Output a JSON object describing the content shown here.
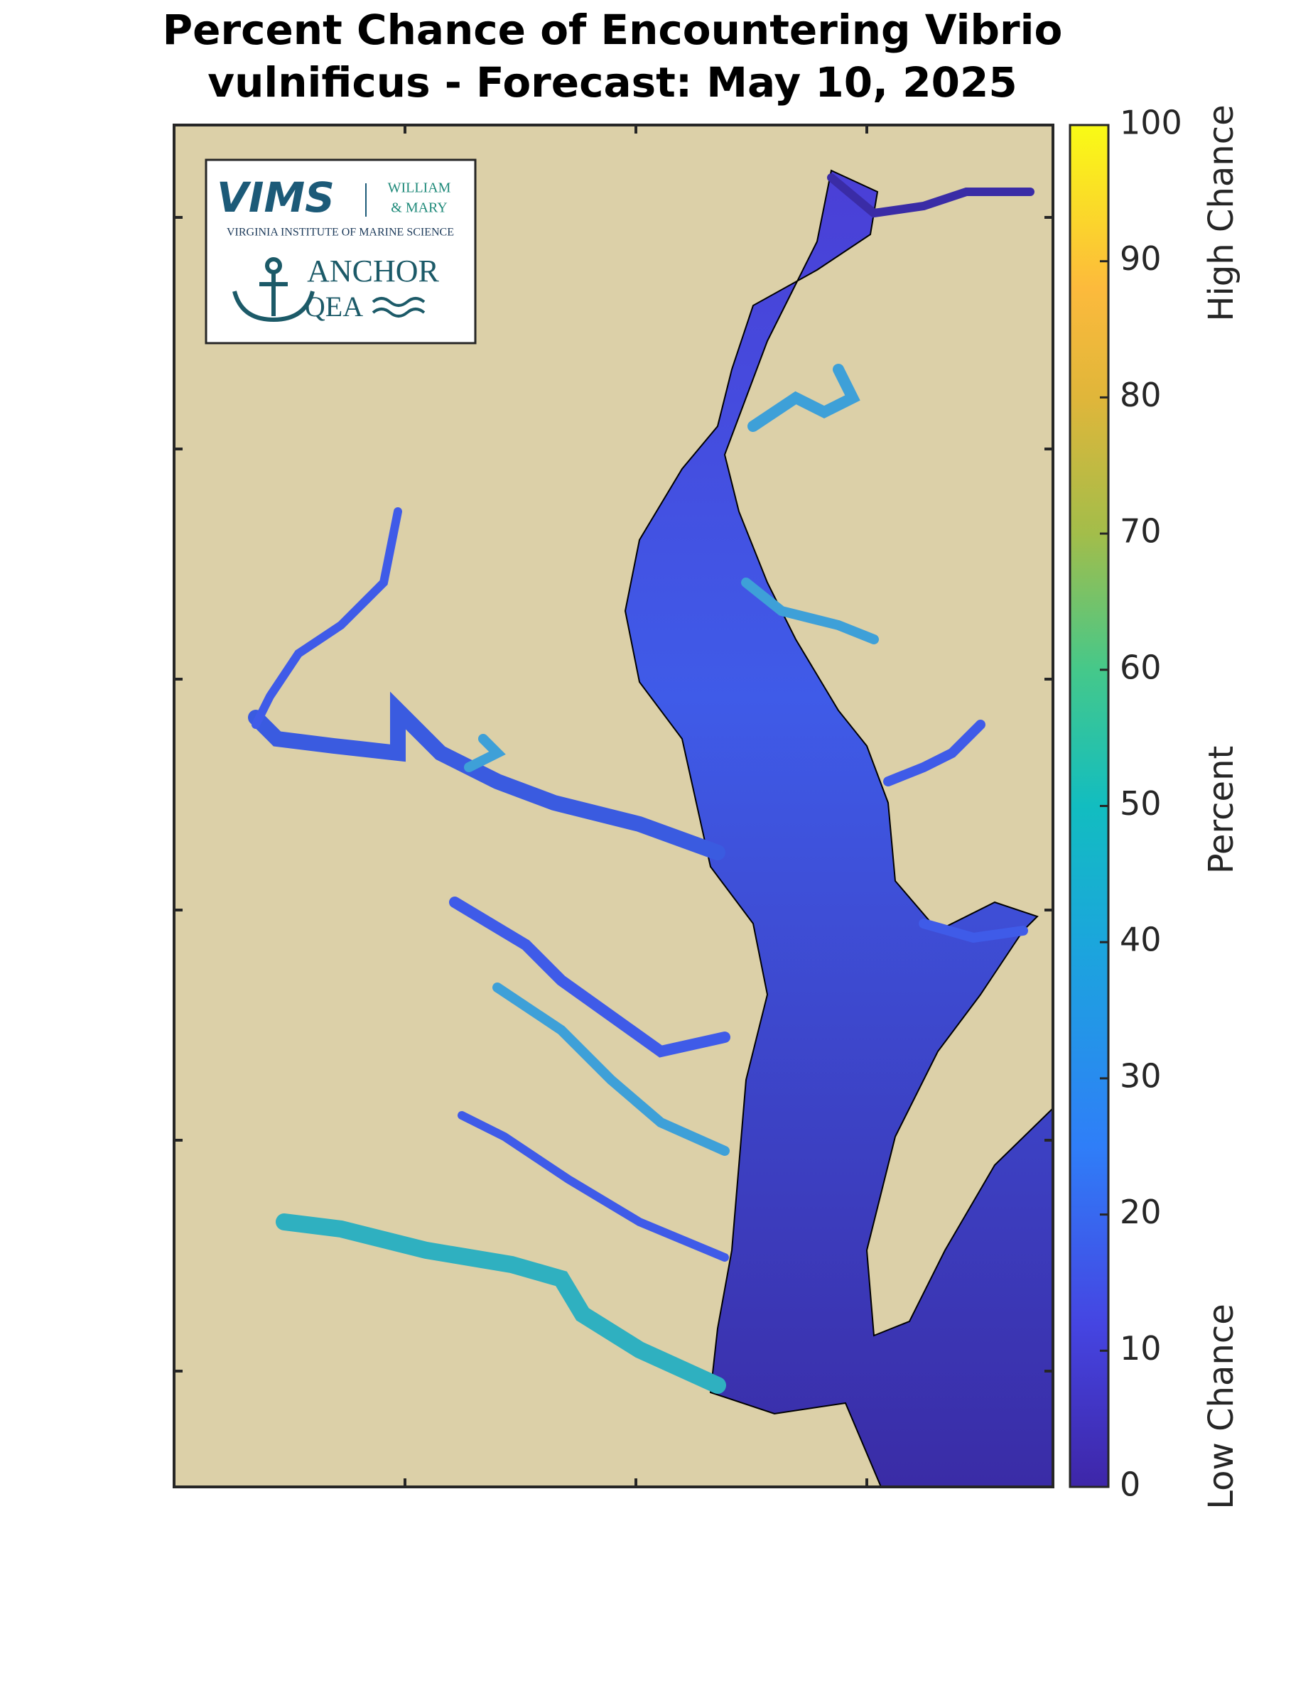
{
  "title": [
    "Percent Chance of Encountering Vibrio",
    "vulnificus - Forecast: May 10, 2025"
  ],
  "logo": {
    "vims": "VIMS",
    "william": "WILLIAM",
    "mary": "& MARY",
    "institute": "VIRGINIA INSTITUTE OF MARINE SCIENCE",
    "anchor": "ANCHOR",
    "qea": "QEA"
  },
  "colorbar": {
    "label": "Percent",
    "high_label": "High Chance",
    "low_label": "Low Chance",
    "lim": [
      0,
      100
    ],
    "ticks": [
      0,
      10,
      20,
      30,
      40,
      50,
      60,
      70,
      80,
      90,
      100
    ]
  }
}
